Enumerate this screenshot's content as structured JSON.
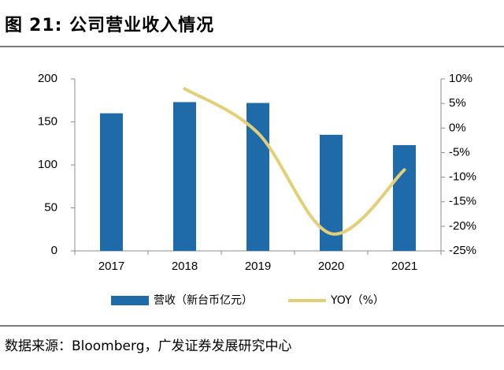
{
  "figure": {
    "label": "图",
    "number": "21:",
    "title": "公司营业收入情况"
  },
  "source_text": "数据来源：Bloomberg，广发证券发展研究中心",
  "colors": {
    "bar": "#1F6BAA",
    "line": "#E2CF76",
    "rule": "#7a7a7a"
  },
  "chart_data": {
    "type": "bar",
    "categories": [
      "2017",
      "2018",
      "2019",
      "2020",
      "2021"
    ],
    "series": [
      {
        "name": "营收（新台币亿元）",
        "type": "bar",
        "axis": "left",
        "values": [
          160,
          173,
          172,
          135,
          123
        ]
      },
      {
        "name": "YOY（%）",
        "type": "line",
        "axis": "right",
        "values": [
          null,
          8,
          -1,
          -21.5,
          -8.5
        ]
      }
    ],
    "left_axis": {
      "ticks": [
        "0",
        "50",
        "100",
        "150",
        "200"
      ],
      "ylim": [
        0,
        200
      ]
    },
    "right_axis": {
      "ticks": [
        "-25%",
        "-20%",
        "-15%",
        "-10%",
        "-5%",
        "0%",
        "5%",
        "10%"
      ],
      "ylim": [
        -25,
        10
      ]
    },
    "legend_position": "bottom",
    "grid": false
  }
}
